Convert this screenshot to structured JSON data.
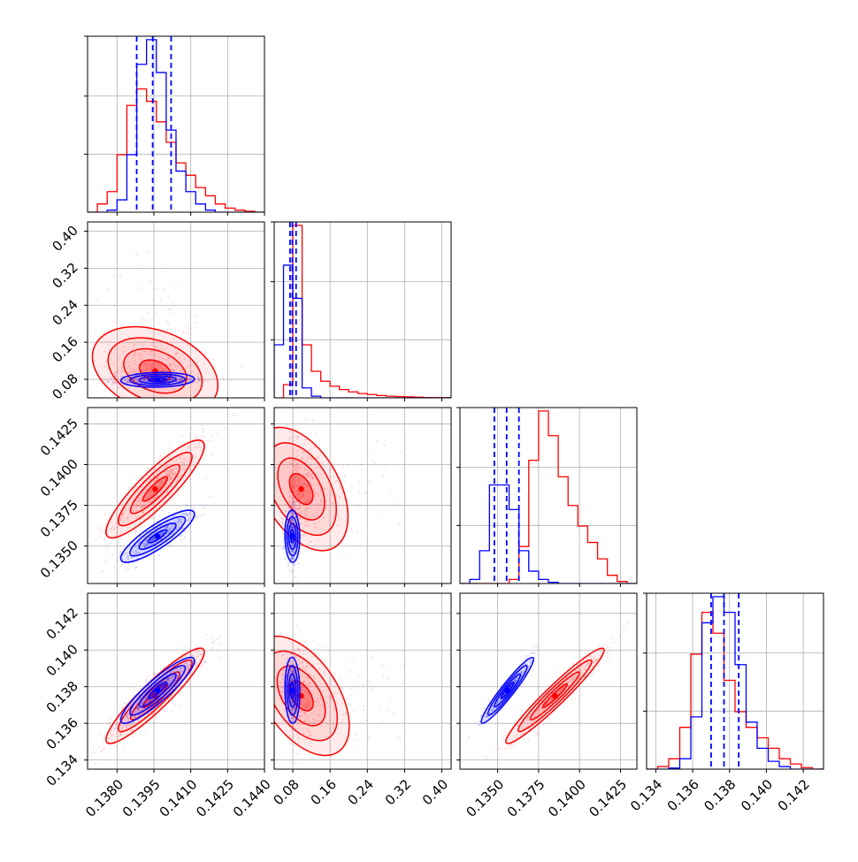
{
  "chart_data": {
    "type": "corner",
    "n_params": 4,
    "grid": true,
    "colors": {
      "series_a": "#ff0000",
      "series_b": "#0000ff"
    },
    "series": [
      {
        "color": "#ff0000"
      },
      {
        "color": "#0000ff"
      }
    ],
    "params": [
      {
        "range": [
          0.1368,
          0.144
        ],
        "ticks": [
          0.138,
          0.1395,
          0.141,
          0.1425,
          0.144
        ],
        "tick_labels": [
          "0.1380",
          "0.1395",
          "0.1410",
          "0.1425",
          "0.1440"
        ]
      },
      {
        "range": [
          0.04,
          0.42
        ],
        "ticks": [
          0.08,
          0.16,
          0.24,
          0.32,
          0.4
        ],
        "tick_labels": [
          "0.08",
          "0.16",
          "0.24",
          "0.32",
          "0.40"
        ]
      },
      {
        "range": [
          0.1327,
          0.1435
        ],
        "ticks": [
          0.135,
          0.1375,
          0.14,
          0.1425
        ],
        "tick_labels": [
          "0.1350",
          "0.1375",
          "0.1400",
          "0.1425"
        ]
      },
      {
        "range": [
          0.1335,
          0.1431
        ],
        "ticks": [
          0.134,
          0.136,
          0.138,
          0.14,
          0.142
        ],
        "tick_labels": [
          "0.134",
          "0.136",
          "0.138",
          "0.140",
          "0.142"
        ]
      }
    ],
    "diag_quantiles": [
      [
        0.1388,
        0.13945,
        0.1402
      ],
      [
        0.074,
        0.079,
        0.087
      ],
      [
        0.1348,
        0.13555,
        0.1363
      ],
      [
        0.137,
        0.1377,
        0.1385
      ]
    ],
    "hist": [
      {
        "edges": [
          0.1368,
          0.1372,
          0.1376,
          0.138,
          0.1384,
          0.1388,
          0.1392,
          0.1396,
          0.14,
          0.1404,
          0.1408,
          0.1412,
          0.1416,
          0.142,
          0.1424,
          0.1428,
          0.1432,
          0.1436,
          0.144
        ],
        "red": [
          0,
          2,
          5,
          14,
          26,
          30,
          27,
          22,
          17,
          12,
          9,
          6,
          4,
          2,
          1,
          0.5,
          0.2,
          0
        ],
        "blue": [
          0,
          0,
          0.5,
          3,
          14,
          36,
          42,
          34,
          20,
          10,
          5,
          2,
          0.5,
          0,
          0,
          0,
          0,
          0
        ]
      },
      {
        "edges": [
          0.04,
          0.06,
          0.08,
          0.1,
          0.12,
          0.14,
          0.16,
          0.18,
          0.2,
          0.22,
          0.24,
          0.26,
          0.28,
          0.3,
          0.32,
          0.34,
          0.36,
          0.38,
          0.4,
          0.42
        ],
        "red": [
          0,
          4,
          52,
          16,
          8,
          5,
          3.5,
          2.5,
          1.8,
          1.3,
          1,
          0.7,
          0.5,
          0.4,
          0.3,
          0.2,
          0.1,
          0.05,
          0.05
        ],
        "blue": [
          16,
          40,
          30,
          3,
          0.5,
          0,
          0,
          0,
          0,
          0,
          0,
          0,
          0,
          0,
          0,
          0,
          0,
          0,
          0
        ]
      },
      {
        "edges": [
          0.1327,
          0.1333,
          0.1339,
          0.1345,
          0.1351,
          0.1357,
          0.1363,
          0.1369,
          0.1375,
          0.1381,
          0.1387,
          0.1393,
          0.1399,
          0.1405,
          0.1411,
          0.1417,
          0.1423,
          0.1429,
          0.1435
        ],
        "red": [
          0,
          0,
          0,
          0,
          0,
          1,
          9,
          30,
          42,
          36,
          26,
          19,
          14,
          10,
          6,
          2,
          0.5,
          0
        ],
        "blue": [
          0,
          1,
          8,
          24,
          24,
          18,
          8,
          3,
          1,
          0.3,
          0,
          0,
          0,
          0,
          0,
          0,
          0,
          0
        ]
      },
      {
        "edges": [
          0.1335,
          0.1341,
          0.1347,
          0.1353,
          0.1359,
          0.1365,
          0.1371,
          0.1377,
          0.1383,
          0.1389,
          0.1395,
          0.1401,
          0.1407,
          0.1413,
          0.1419,
          0.1425,
          0.1431
        ],
        "red": [
          0,
          0.5,
          2,
          8,
          22,
          30,
          26,
          17,
          11,
          8,
          6,
          4,
          2,
          1,
          0.3,
          0
        ],
        "blue": [
          0,
          0,
          0.2,
          2,
          10,
          28,
          33,
          30,
          20,
          9,
          4,
          1.5,
          0.5,
          0,
          0,
          0
        ]
      }
    ],
    "posteriors": {
      "red": {
        "mean": [
          0.13955,
          0.098,
          0.1385,
          0.1375
        ],
        "sd": [
          0.001,
          0.045,
          0.0015,
          0.0013
        ],
        "corr": [
          [
            1,
            -0.15,
            0.88,
            0.92
          ],
          [
            -0.15,
            1,
            -0.25,
            -0.3
          ],
          [
            0.88,
            -0.25,
            1,
            0.96
          ],
          [
            0.92,
            -0.3,
            0.96,
            1
          ]
        ]
      },
      "blue": {
        "mean": [
          0.13965,
          0.079,
          0.1356,
          0.1378
        ],
        "sd": [
          0.00075,
          0.008,
          0.0008,
          0.0009
        ],
        "corr": [
          [
            1,
            0.1,
            0.85,
            0.9
          ],
          [
            0.1,
            1,
            -0.05,
            -0.05
          ],
          [
            0.85,
            -0.05,
            1,
            0.95
          ],
          [
            0.9,
            -0.05,
            0.95,
            1
          ]
        ]
      }
    }
  }
}
